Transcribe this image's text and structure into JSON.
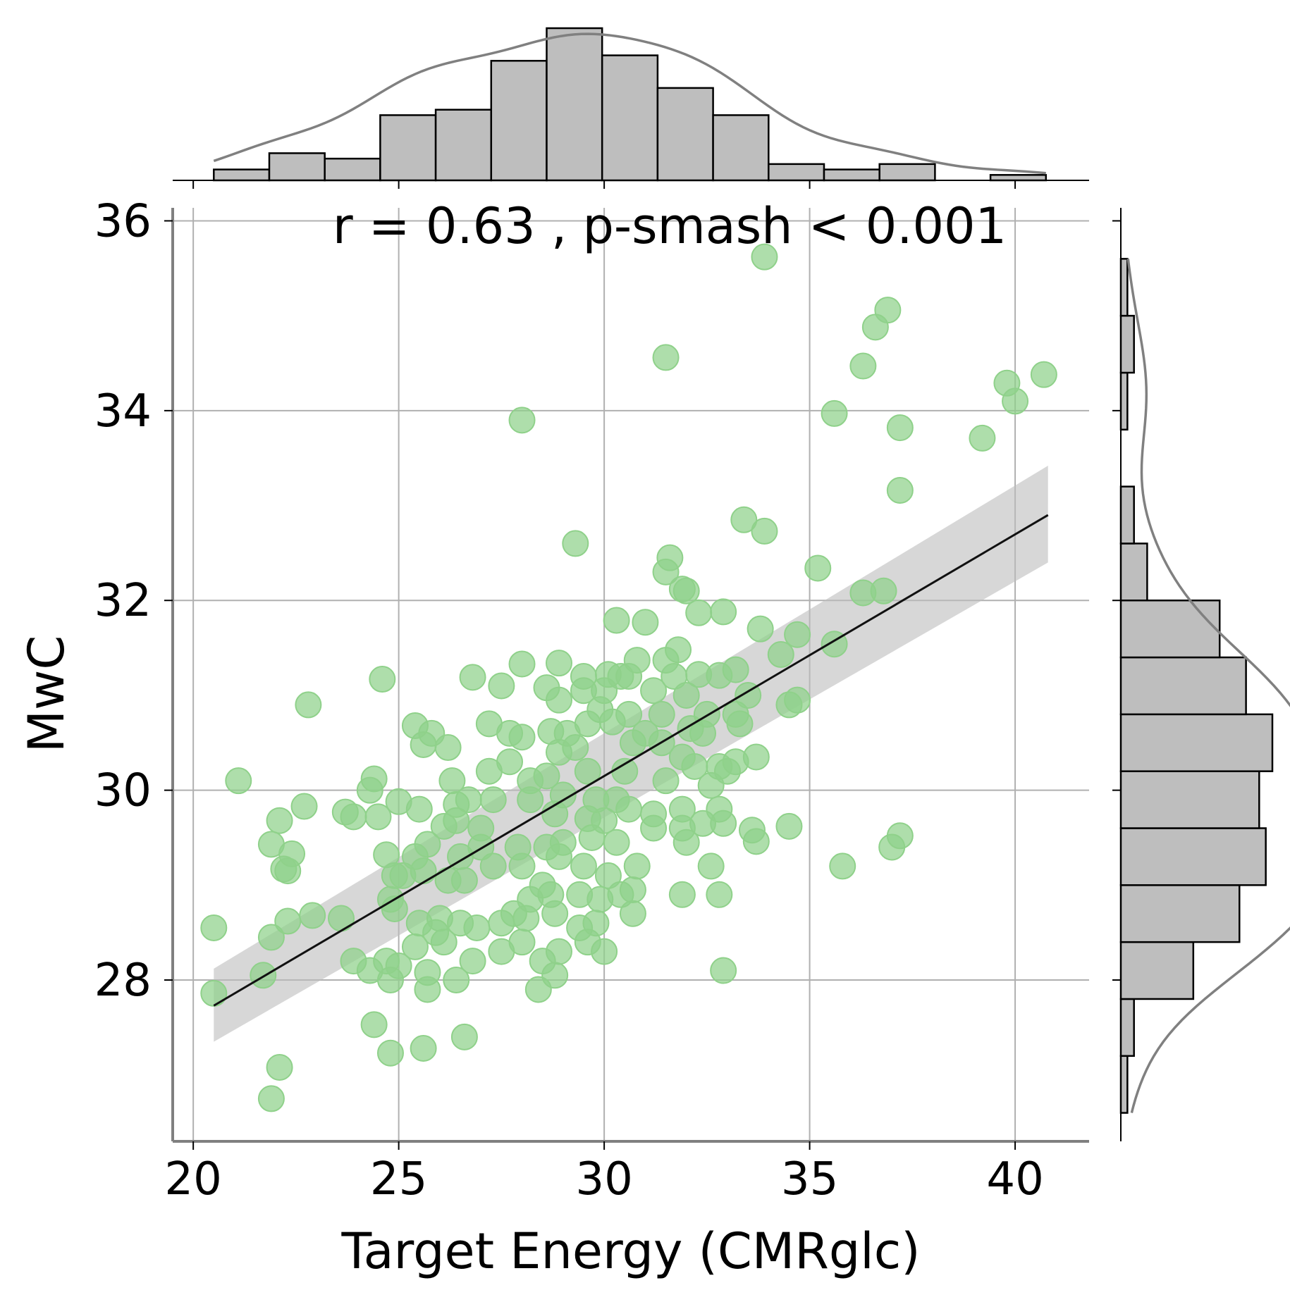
{
  "chart_data": {
    "type": "scatter",
    "annotation": "r = 0.63 , p-smash <  0.001",
    "xlabel": "Target Energy (CMRglc)",
    "ylabel": "MwC",
    "xlim": [
      19.5,
      41.8
    ],
    "ylim": [
      26.3,
      36.1
    ],
    "xticks": [
      20,
      25,
      30,
      35,
      40
    ],
    "yticks": [
      28,
      30,
      32,
      34,
      36
    ],
    "grid": true,
    "colors": {
      "points": "#8fd18a",
      "line": "#111111",
      "band": "#bdbdbd",
      "hist": "#bebebe",
      "kde": "#808080"
    },
    "regression": {
      "x": [
        20.5,
        40.8
      ],
      "y": [
        27.73,
        32.9
      ],
      "ci_lower": [
        27.35,
        32.4
      ],
      "ci_upper": [
        28.12,
        33.42
      ]
    },
    "points": [
      [
        33.9,
        35.62
      ],
      [
        36.9,
        35.06
      ],
      [
        36.6,
        34.88
      ],
      [
        36.3,
        34.47
      ],
      [
        31.5,
        34.56
      ],
      [
        40.7,
        34.38
      ],
      [
        39.8,
        34.29
      ],
      [
        40.0,
        34.1
      ],
      [
        35.6,
        33.97
      ],
      [
        28.0,
        33.9
      ],
      [
        37.2,
        33.82
      ],
      [
        39.2,
        33.71
      ],
      [
        37.2,
        33.16
      ],
      [
        33.4,
        32.85
      ],
      [
        33.9,
        32.73
      ],
      [
        29.3,
        32.6
      ],
      [
        31.6,
        32.45
      ],
      [
        35.2,
        32.34
      ],
      [
        31.5,
        32.3
      ],
      [
        31.9,
        32.12
      ],
      [
        32.0,
        32.1
      ],
      [
        36.3,
        32.08
      ],
      [
        36.8,
        32.1
      ],
      [
        32.3,
        31.87
      ],
      [
        32.9,
        31.88
      ],
      [
        30.3,
        31.79
      ],
      [
        31.0,
        31.77
      ],
      [
        33.8,
        31.7
      ],
      [
        34.7,
        31.64
      ],
      [
        35.6,
        31.54
      ],
      [
        31.8,
        31.48
      ],
      [
        34.3,
        31.43
      ],
      [
        31.5,
        31.37
      ],
      [
        30.8,
        31.37
      ],
      [
        28.0,
        31.33
      ],
      [
        28.9,
        31.34
      ],
      [
        33.2,
        31.27
      ],
      [
        24.6,
        31.17
      ],
      [
        26.8,
        31.19
      ],
      [
        29.5,
        31.2
      ],
      [
        30.1,
        31.22
      ],
      [
        30.4,
        31.2
      ],
      [
        30.6,
        31.2
      ],
      [
        31.7,
        31.2
      ],
      [
        32.3,
        31.22
      ],
      [
        32.8,
        31.21
      ],
      [
        27.5,
        31.1
      ],
      [
        28.6,
        31.08
      ],
      [
        29.5,
        31.05
      ],
      [
        30.0,
        31.05
      ],
      [
        31.2,
        31.05
      ],
      [
        32.0,
        31.0
      ],
      [
        33.5,
        31.0
      ],
      [
        34.7,
        30.95
      ],
      [
        28.9,
        30.95
      ],
      [
        22.8,
        30.9
      ],
      [
        29.9,
        30.85
      ],
      [
        30.6,
        30.8
      ],
      [
        31.4,
        30.8
      ],
      [
        32.5,
        30.8
      ],
      [
        33.2,
        30.8
      ],
      [
        34.5,
        30.9
      ],
      [
        25.4,
        30.68
      ],
      [
        27.2,
        30.7
      ],
      [
        27.7,
        30.6
      ],
      [
        28.0,
        30.56
      ],
      [
        28.7,
        30.62
      ],
      [
        29.1,
        30.6
      ],
      [
        29.6,
        30.7
      ],
      [
        30.2,
        30.72
      ],
      [
        31.0,
        30.6
      ],
      [
        32.1,
        30.65
      ],
      [
        33.3,
        30.7
      ],
      [
        25.8,
        30.6
      ],
      [
        25.6,
        30.48
      ],
      [
        26.2,
        30.45
      ],
      [
        27.7,
        30.3
      ],
      [
        28.9,
        30.4
      ],
      [
        29.3,
        30.45
      ],
      [
        30.7,
        30.5
      ],
      [
        31.4,
        30.5
      ],
      [
        32.4,
        30.6
      ],
      [
        31.9,
        30.35
      ],
      [
        32.2,
        30.25
      ],
      [
        32.8,
        30.25
      ],
      [
        33.2,
        30.3
      ],
      [
        33.7,
        30.35
      ],
      [
        21.1,
        30.1
      ],
      [
        24.4,
        30.12
      ],
      [
        24.3,
        30.0
      ],
      [
        26.3,
        30.1
      ],
      [
        27.2,
        30.2
      ],
      [
        28.2,
        30.1
      ],
      [
        28.6,
        30.15
      ],
      [
        29.6,
        30.2
      ],
      [
        30.5,
        30.2
      ],
      [
        31.5,
        30.1
      ],
      [
        32.6,
        30.05
      ],
      [
        33.0,
        30.2
      ],
      [
        25.0,
        29.88
      ],
      [
        26.4,
        29.85
      ],
      [
        26.7,
        29.9
      ],
      [
        27.3,
        29.9
      ],
      [
        28.2,
        29.9
      ],
      [
        29.0,
        29.95
      ],
      [
        29.8,
        29.9
      ],
      [
        30.3,
        29.9
      ],
      [
        22.7,
        29.83
      ],
      [
        23.7,
        29.77
      ],
      [
        23.9,
        29.72
      ],
      [
        24.5,
        29.72
      ],
      [
        25.5,
        29.8
      ],
      [
        26.1,
        29.62
      ],
      [
        26.4,
        29.68
      ],
      [
        27.0,
        29.6
      ],
      [
        28.8,
        29.75
      ],
      [
        29.6,
        29.7
      ],
      [
        30.0,
        29.68
      ],
      [
        30.6,
        29.8
      ],
      [
        31.2,
        29.75
      ],
      [
        31.9,
        29.8
      ],
      [
        32.8,
        29.8
      ],
      [
        33.6,
        29.58
      ],
      [
        34.5,
        29.62
      ],
      [
        32.4,
        29.65
      ],
      [
        32.9,
        29.65
      ],
      [
        22.1,
        29.68
      ],
      [
        21.9,
        29.43
      ],
      [
        22.4,
        29.33
      ],
      [
        22.2,
        29.17
      ],
      [
        22.3,
        29.15
      ],
      [
        24.7,
        29.32
      ],
      [
        25.4,
        29.3
      ],
      [
        25.7,
        29.43
      ],
      [
        26.5,
        29.3
      ],
      [
        27.0,
        29.4
      ],
      [
        27.9,
        29.4
      ],
      [
        28.6,
        29.4
      ],
      [
        29.0,
        29.45
      ],
      [
        29.7,
        29.5
      ],
      [
        30.3,
        29.45
      ],
      [
        31.2,
        29.6
      ],
      [
        31.9,
        29.6
      ],
      [
        32.0,
        29.45
      ],
      [
        33.7,
        29.46
      ],
      [
        37.0,
        29.4
      ],
      [
        37.2,
        29.52
      ],
      [
        35.8,
        29.2
      ],
      [
        24.9,
        29.1
      ],
      [
        25.1,
        29.1
      ],
      [
        25.6,
        29.15
      ],
      [
        26.2,
        29.05
      ],
      [
        26.6,
        29.05
      ],
      [
        27.3,
        29.2
      ],
      [
        28.0,
        29.2
      ],
      [
        28.5,
        29.0
      ],
      [
        28.9,
        29.3
      ],
      [
        29.5,
        29.2
      ],
      [
        30.1,
        29.1
      ],
      [
        30.8,
        29.2
      ],
      [
        32.6,
        29.2
      ],
      [
        24.8,
        28.85
      ],
      [
        24.9,
        28.75
      ],
      [
        26.0,
        28.65
      ],
      [
        27.8,
        28.7
      ],
      [
        28.2,
        28.85
      ],
      [
        28.7,
        28.9
      ],
      [
        29.4,
        28.9
      ],
      [
        29.9,
        28.85
      ],
      [
        30.4,
        28.9
      ],
      [
        30.7,
        28.95
      ],
      [
        31.9,
        28.9
      ],
      [
        32.8,
        28.9
      ],
      [
        20.5,
        28.55
      ],
      [
        21.9,
        28.45
      ],
      [
        22.3,
        28.62
      ],
      [
        22.9,
        28.68
      ],
      [
        23.6,
        28.65
      ],
      [
        25.5,
        28.6
      ],
      [
        25.9,
        28.5
      ],
      [
        26.5,
        28.6
      ],
      [
        26.9,
        28.55
      ],
      [
        27.5,
        28.6
      ],
      [
        28.1,
        28.65
      ],
      [
        28.8,
        28.7
      ],
      [
        29.4,
        28.55
      ],
      [
        30.7,
        28.7
      ],
      [
        29.8,
        28.6
      ],
      [
        25.4,
        28.35
      ],
      [
        26.1,
        28.4
      ],
      [
        26.8,
        28.2
      ],
      [
        27.5,
        28.3
      ],
      [
        28.0,
        28.4
      ],
      [
        28.9,
        28.3
      ],
      [
        29.6,
        28.4
      ],
      [
        30.0,
        28.3
      ],
      [
        23.9,
        28.2
      ],
      [
        24.3,
        28.1
      ],
      [
        24.7,
        28.2
      ],
      [
        25.0,
        28.15
      ],
      [
        25.7,
        28.08
      ],
      [
        28.5,
        28.2
      ],
      [
        28.8,
        28.05
      ],
      [
        32.9,
        28.1
      ],
      [
        21.7,
        28.05
      ],
      [
        24.8,
        28.0
      ],
      [
        26.4,
        28.0
      ],
      [
        28.4,
        27.9
      ],
      [
        25.7,
        27.9
      ],
      [
        20.5,
        27.86
      ],
      [
        24.4,
        27.53
      ],
      [
        26.6,
        27.4
      ],
      [
        22.1,
        27.08
      ],
      [
        24.8,
        27.23
      ],
      [
        25.6,
        27.28
      ],
      [
        21.9,
        26.75
      ]
    ]
  },
  "hist_x": {
    "edges": [
      20.5,
      21.85,
      23.2,
      24.55,
      25.9,
      27.25,
      28.6,
      29.95,
      31.3,
      32.65,
      34.0,
      35.35,
      36.7,
      38.05,
      39.4,
      40.75
    ],
    "counts": [
      2,
      5,
      4,
      12,
      13,
      22,
      28,
      23,
      17,
      12,
      3,
      2,
      3,
      0,
      1
    ]
  },
  "hist_y": {
    "edges": [
      26.6,
      27.2,
      27.8,
      28.4,
      29.0,
      29.6,
      30.2,
      30.8,
      31.4,
      32.0,
      32.6,
      33.2,
      33.8,
      34.4,
      35.0,
      35.6
    ],
    "counts": [
      1,
      2,
      11,
      18,
      22,
      21,
      23,
      19,
      15,
      4,
      2,
      0,
      1,
      2,
      1
    ]
  }
}
